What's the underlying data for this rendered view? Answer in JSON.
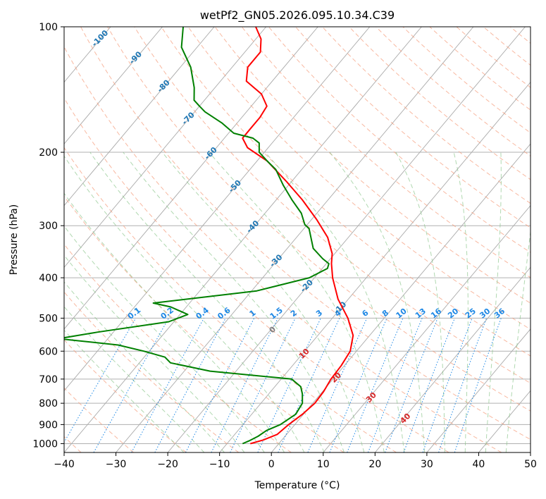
{
  "chart_data": {
    "type": "line",
    "title": "wetPf2_GN05.2026.095.10.34.C39",
    "xlabel": "Temperature (°C)",
    "ylabel": "Pressure (hPa)",
    "xlim": [
      -40,
      50
    ],
    "ylim": [
      1050,
      100
    ],
    "y_scale": "log",
    "grid": true,
    "x_ticks": [
      "−40",
      "−30",
      "−20",
      "−10",
      "0",
      "10",
      "20",
      "30",
      "40",
      "50"
    ],
    "x_tick_values": [
      -40,
      -30,
      -20,
      -10,
      0,
      10,
      20,
      30,
      40,
      50
    ],
    "y_ticks": [
      "100",
      "200",
      "300",
      "400",
      "500",
      "600",
      "700",
      "800",
      "900",
      "1000"
    ],
    "y_tick_values": [
      100,
      200,
      300,
      400,
      500,
      600,
      700,
      800,
      900,
      1000
    ],
    "colors": {
      "temperature": "#ff0000",
      "dewpoint": "#008000",
      "isotherm": "#aaaaaa",
      "dry_adiabat": "#f5a080",
      "moist_adiabat": "#8ec88e",
      "mixing_ratio": "#1e88e5",
      "isotherm_label": "#1f77b4",
      "mixing_label": "#1e88e5",
      "adiabat_label": "#d62728",
      "zero_label": "#808080"
    },
    "series": [
      {
        "key": "temperature",
        "points": [
          [
            -5.5,
            1000
          ],
          [
            -3.6,
            980
          ],
          [
            -1.8,
            950
          ],
          [
            -1.2,
            900
          ],
          [
            -0.2,
            850
          ],
          [
            0.4,
            800
          ],
          [
            0.2,
            750
          ],
          [
            -0.4,
            700
          ],
          [
            -0.6,
            650
          ],
          [
            -1.2,
            600
          ],
          [
            -3.2,
            550
          ],
          [
            -7.0,
            500
          ],
          [
            -12.0,
            450
          ],
          [
            -16.5,
            400
          ],
          [
            -19.0,
            370
          ],
          [
            -20.5,
            350
          ],
          [
            -24.0,
            320
          ],
          [
            -29.0,
            290
          ],
          [
            -35.0,
            260
          ],
          [
            -41.0,
            235
          ],
          [
            -48.0,
            210
          ],
          [
            -54.0,
            195
          ],
          [
            -56.5,
            185
          ],
          [
            -56.5,
            175
          ],
          [
            -56.5,
            165
          ],
          [
            -57.0,
            155
          ],
          [
            -60.0,
            145
          ],
          [
            -65.0,
            135
          ],
          [
            -67.0,
            125
          ],
          [
            -67.0,
            115
          ],
          [
            -69.0,
            107
          ],
          [
            -72.0,
            100
          ]
        ]
      },
      {
        "key": "dewpoint",
        "points": [
          [
            -7.0,
            1000
          ],
          [
            -6.2,
            985
          ],
          [
            -5.2,
            960
          ],
          [
            -4.5,
            930
          ],
          [
            -2.8,
            900
          ],
          [
            -1.5,
            850
          ],
          [
            -2.0,
            800
          ],
          [
            -3.5,
            760
          ],
          [
            -5.0,
            730
          ],
          [
            -8.0,
            700
          ],
          [
            -25.0,
            670
          ],
          [
            -34.0,
            640
          ],
          [
            -36.0,
            620
          ],
          [
            -41.0,
            600
          ],
          [
            -47.0,
            580
          ],
          [
            -59.5,
            560
          ],
          [
            -53.0,
            540
          ],
          [
            -41.0,
            510
          ],
          [
            -38.5,
            490
          ],
          [
            -43.0,
            470
          ],
          [
            -47.0,
            460
          ],
          [
            -29.0,
            430
          ],
          [
            -21.0,
            400
          ],
          [
            -19.0,
            380
          ],
          [
            -19.5,
            370
          ],
          [
            -21.5,
            360
          ],
          [
            -25.0,
            340
          ],
          [
            -29.0,
            305
          ],
          [
            -30.5,
            298
          ],
          [
            -33.0,
            280
          ],
          [
            -37.0,
            260
          ],
          [
            -41.0,
            240
          ],
          [
            -45.0,
            220
          ],
          [
            -48.0,
            210
          ],
          [
            -51.0,
            200
          ],
          [
            -52.5,
            190
          ],
          [
            -54.5,
            185
          ],
          [
            -59.0,
            180
          ],
          [
            -63.0,
            170
          ],
          [
            -68.0,
            160
          ],
          [
            -70.0,
            155
          ],
          [
            -72.0,
            150
          ],
          [
            -74.0,
            140
          ],
          [
            -78.0,
            125
          ],
          [
            -83.0,
            112
          ],
          [
            -86.0,
            100
          ]
        ]
      }
    ],
    "isotherm_labels": [
      "-100",
      "-90",
      "-80",
      "-70",
      "-60",
      "-50",
      "-40",
      "-30",
      "-20",
      "-10"
    ],
    "isotherm_label_values": [
      -100,
      -90,
      -80,
      -70,
      -60,
      -50,
      -40,
      -30,
      -20,
      -10
    ],
    "mixing_ratio_labels": [
      "0.1",
      "0.2",
      "0.4",
      "0.6",
      "1",
      "1.5",
      "2",
      "3",
      "4",
      "6",
      "8",
      "10",
      "13",
      "16",
      "20",
      "25",
      "30",
      "36"
    ],
    "mixing_ratio_values": [
      0.1,
      0.2,
      0.4,
      0.6,
      1,
      1.5,
      2,
      3,
      4,
      6,
      8,
      10,
      13,
      16,
      20,
      25,
      30,
      36
    ],
    "adiabat_labels": [
      "0",
      "10",
      "20",
      "30",
      "40"
    ],
    "adiabat_label_values": [
      0,
      10,
      20,
      30,
      40
    ]
  }
}
